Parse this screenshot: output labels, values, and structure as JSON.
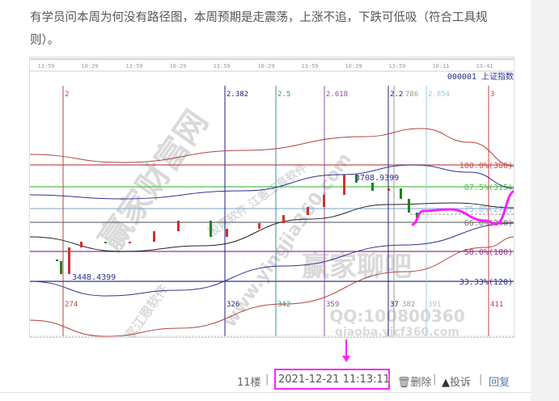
{
  "post": {
    "text": "有学员问本周为何没有路径图，本周预期是走震荡，上涨不追，下跌可低吸（符合工具规则）。"
  },
  "chart_image": {
    "time_labels": [
      "13:59",
      "10:29",
      "13:59",
      "10:29",
      "13:59",
      "10:29",
      "13:59",
      "10:29",
      "13:59",
      "10:11",
      "13:41"
    ],
    "index_label": "000001 上证指数",
    "vertical_lines": [
      {
        "label": "2",
        "bottom": "274",
        "color": "#c04040"
      },
      {
        "label": "2.382",
        "bottom": "326",
        "color": "#202080"
      },
      {
        "label": "2.5",
        "bottom": "342",
        "color": "#309090"
      },
      {
        "label": "2.618",
        "bottom": "359",
        "color": "#9050a0"
      },
      {
        "label": "2.2",
        "bottom": "37",
        "color": "#202080"
      },
      {
        "label": "786",
        "bottom": "382",
        "color": "#999999"
      },
      {
        "label": "2.854",
        "bottom": "391",
        "color": "#a0c8e0"
      },
      {
        "label": "3",
        "bottom": "411",
        "color": "#c04040"
      }
    ],
    "levels": [
      {
        "label": "100.0%(360)",
        "color": "#c05050"
      },
      {
        "label": "87.5%(315)",
        "color": "#50c050"
      },
      {
        "label": "75.0%(270)",
        "color": "#90b8d8"
      },
      {
        "label": "66.6%(240)",
        "color": "#707070"
      },
      {
        "label": "50.0%(180)",
        "color": "#9a3090"
      },
      {
        "label": "33.33%(120)",
        "color": "#303090"
      }
    ],
    "high_label": "3708.9399",
    "low_label": "3448.4399",
    "watermarks": [
      "赢家财富网",
      "赢家江恩软件",
      "股票软件 江恩工具软件",
      "www.yingjia360.com",
      "赢家聊吧",
      "QQ:100800360",
      "qiaoba.yjcf360.com"
    ],
    "accent_color": "#ff1fff"
  },
  "footer": {
    "floor": "11楼",
    "timestamp": "2021-12-21 11:13:11",
    "delete_label": "删除",
    "report_label": "投诉",
    "reply_label": "回复",
    "separator": "|"
  }
}
